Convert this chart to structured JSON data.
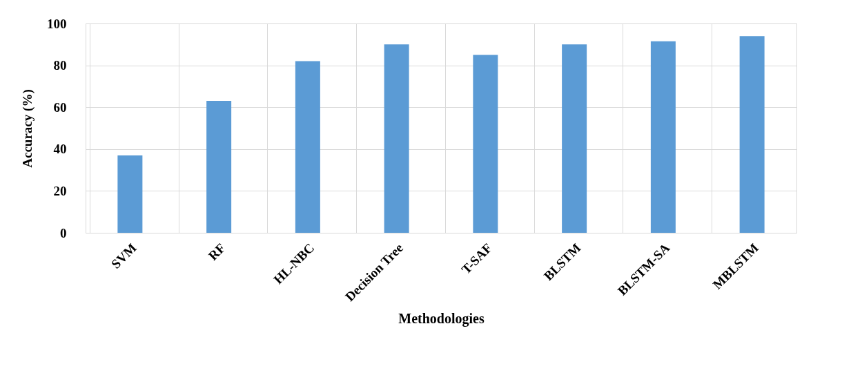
{
  "chart_data": {
    "type": "bar",
    "xlabel": "Methodologies",
    "ylabel": "Accuracy (%)",
    "categories": [
      "SVM",
      "RF",
      "HL-NBC",
      "Decision Tree",
      "T-SAF",
      "BLSTM",
      "BLSTM-SA",
      "MBLSTM"
    ],
    "values": [
      37,
      63,
      82,
      90,
      85,
      90,
      91.5,
      94
    ],
    "color": "#5b9bd5",
    "ylim": [
      0,
      100
    ],
    "yticks": [
      0,
      20,
      40,
      60,
      80,
      100
    ],
    "grid": true
  }
}
